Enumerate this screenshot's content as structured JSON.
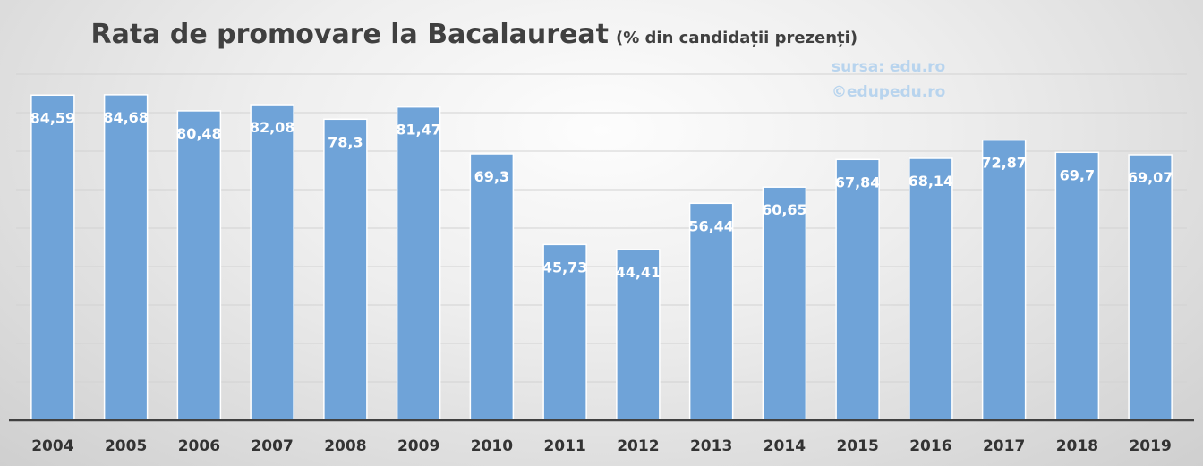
{
  "chart_data": {
    "type": "bar",
    "title": "Rata de promovare la Bacalaureat",
    "subtitle": "(% din candidații prezenți)",
    "categories": [
      "2004",
      "2005",
      "2006",
      "2007",
      "2008",
      "2009",
      "2010",
      "2011",
      "2012",
      "2013",
      "2014",
      "2015",
      "2016",
      "2017",
      "2018",
      "2019"
    ],
    "values": [
      84.59,
      84.68,
      80.48,
      82.08,
      78.3,
      81.47,
      69.3,
      45.73,
      44.41,
      56.44,
      60.65,
      67.84,
      68.14,
      72.87,
      69.7,
      69.07
    ],
    "value_labels": [
      "84,59",
      "84,68",
      "80,48",
      "82,08",
      "78,3",
      "81,47",
      "69,3",
      "45,73",
      "44,41",
      "56,44",
      "60,65",
      "67,84",
      "68,14",
      "72,87",
      "69,7",
      "69,07"
    ],
    "xlabel": "",
    "ylabel": "",
    "ylim": [
      0,
      90
    ],
    "grid": true,
    "legend": "none",
    "bar_color": "#6fa3d8",
    "bar_edge_color": "#ffffff"
  },
  "watermark": {
    "source": "sursa: edu.ro",
    "copyright": "©edupedu.ro"
  }
}
